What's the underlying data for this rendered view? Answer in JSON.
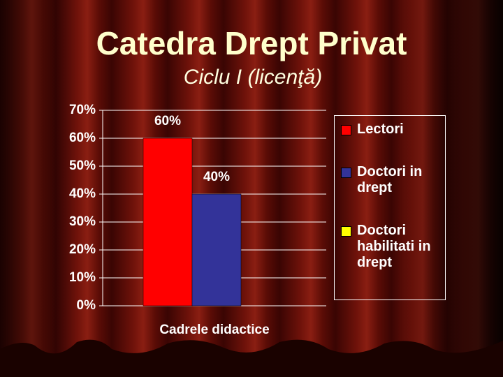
{
  "chart_data": {
    "type": "bar",
    "title": "Catedra Drept Privat",
    "subtitle": "Ciclu I (licenţă)",
    "categories": [
      "Cadrele didactice"
    ],
    "series": [
      {
        "name": "Lectori",
        "color": "#ff0000",
        "values": [
          60
        ],
        "value_labels": [
          "60%"
        ]
      },
      {
        "name": "Doctori in drept",
        "color": "#333399",
        "values": [
          40
        ],
        "value_labels": [
          "40%"
        ]
      },
      {
        "name": "Doctori habilitati in drept",
        "color": "#ffff00",
        "values": [
          0
        ]
      }
    ],
    "ylim": [
      0,
      70
    ],
    "yticks": [
      {
        "value": 0,
        "label": "0%"
      },
      {
        "value": 10,
        "label": "10%"
      },
      {
        "value": 20,
        "label": "20%"
      },
      {
        "value": 30,
        "label": "30%"
      },
      {
        "value": 40,
        "label": "40%"
      },
      {
        "value": 50,
        "label": "50%"
      },
      {
        "value": 60,
        "label": "60%"
      },
      {
        "value": 70,
        "label": "70%"
      }
    ],
    "grid": true,
    "legend": "right"
  }
}
